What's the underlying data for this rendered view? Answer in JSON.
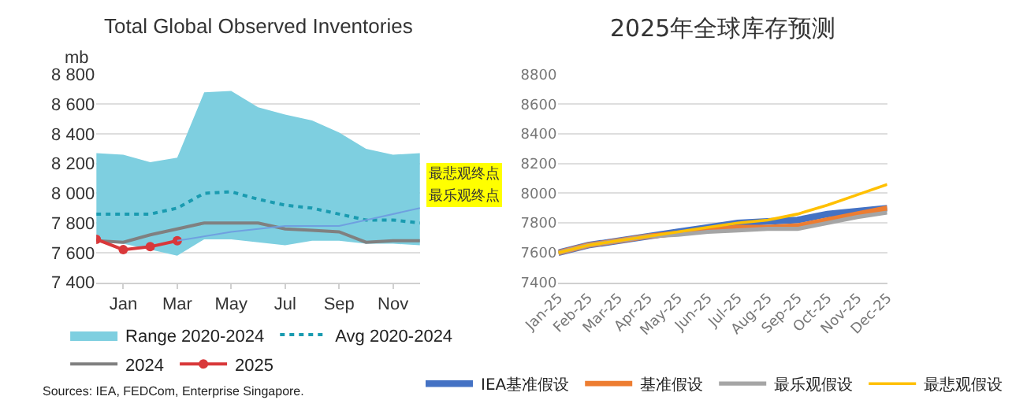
{
  "chart_data": [
    {
      "type": "line",
      "title": "Total Global Observed Inventories",
      "ylabel": "mb",
      "categories": [
        null,
        "Jan",
        null,
        "Mar",
        null,
        "May",
        null,
        "Jul",
        null,
        "Sep",
        null,
        "Nov",
        null
      ],
      "ylim": [
        7400,
        8800
      ],
      "yticks": [
        {
          "value": 7400,
          "label": "7 400"
        },
        {
          "value": 7600,
          "label": "7 600"
        },
        {
          "value": 7800,
          "label": "7 800"
        },
        {
          "value": 8000,
          "label": "8 000"
        },
        {
          "value": 8200,
          "label": "8 200"
        },
        {
          "value": 8400,
          "label": "8 400"
        },
        {
          "value": 8600,
          "label": "8 600"
        },
        {
          "value": 8800,
          "label": "8 800"
        }
      ],
      "grid": "y",
      "legend": "bottom",
      "series": [
        {
          "name": "Range 2020-2024",
          "type": "area",
          "color": "#7ecfe0",
          "values": [
            null,
            null,
            null,
            null,
            null,
            null,
            null,
            null,
            null,
            null,
            null,
            null,
            null
          ],
          "lower": [
            7670,
            7660,
            7620,
            7580,
            7690,
            7690,
            7670,
            7650,
            7680,
            7680,
            7660,
            7660,
            7650
          ],
          "upper": [
            8270,
            8260,
            8210,
            8240,
            8680,
            8690,
            8580,
            8530,
            8490,
            8410,
            8300,
            8260,
            8270
          ]
        },
        {
          "name": "Avg 2020-2024",
          "type": "line",
          "color": "#1a9bb0",
          "line_style": "dotted",
          "marker": "none",
          "values": [
            7860,
            7860,
            7860,
            7900,
            8000,
            8010,
            7960,
            7920,
            7900,
            7860,
            7820,
            7820,
            7800
          ]
        },
        {
          "name": "2024",
          "type": "line",
          "color": "#808080",
          "line_style": "solid",
          "marker": "none",
          "values": [
            7680,
            7670,
            7720,
            7760,
            7800,
            7800,
            7800,
            7760,
            7750,
            7740,
            7670,
            7680,
            7680
          ]
        },
        {
          "name": "2025",
          "type": "line",
          "color": "#d9383a",
          "line_style": "solid",
          "marker": "circle",
          "values": [
            7690,
            7620,
            7640,
            7680,
            null,
            null,
            null,
            null,
            null,
            null,
            null,
            null,
            null
          ]
        },
        {
          "type": "line",
          "color": "#6fa0e0",
          "line_style": "solid",
          "marker": "none",
          "values": [
            null,
            null,
            null,
            7680,
            null,
            7740,
            null,
            7780,
            null,
            7780,
            7820,
            null,
            7900
          ]
        }
      ],
      "annotations": [
        "最悲观终点",
        "最乐观终点",
        "Sources: IEA, FEDCom, Enterprise Singapore."
      ]
    },
    {
      "type": "line",
      "title": "2025年全球库存预测",
      "categories": [
        "Jan-25",
        "Feb-25",
        "Mar-25",
        "Apr-25",
        "May-25",
        "Jun-25",
        "Jul-25",
        "Aug-25",
        "Sep-25",
        "Oct-25",
        "Nov-25",
        "Dec-25"
      ],
      "ylim": [
        7400,
        8800
      ],
      "yticks": [
        7400,
        7600,
        7800,
        8000,
        8200,
        8400,
        8600,
        8800
      ],
      "grid": "y",
      "legend": "bottom",
      "marker": "none",
      "line_style": "solid",
      "series": [
        {
          "name": "IEA基准假设",
          "color": "#4472c4",
          "values": [
            7600,
            7650,
            7680,
            7710,
            7740,
            7770,
            7800,
            7810,
            7820,
            7860,
            7880,
            7900
          ]
        },
        {
          "name": "基准假设",
          "color": "#ed7d31",
          "values": [
            7600,
            7650,
            7680,
            7710,
            7730,
            7750,
            7770,
            7770,
            7780,
            7820,
            7860,
            7900
          ]
        },
        {
          "name": "最乐观假设",
          "color": "#a5a5a5",
          "values": [
            7600,
            7650,
            7680,
            7710,
            7720,
            7740,
            7750,
            7760,
            7760,
            7800,
            7840,
            7870
          ]
        },
        {
          "name": "最悲观假设",
          "color": "#ffc000",
          "values": [
            7600,
            7650,
            7680,
            7710,
            7740,
            7770,
            7800,
            7820,
            7860,
            7920,
            7990,
            8060
          ]
        }
      ]
    }
  ]
}
